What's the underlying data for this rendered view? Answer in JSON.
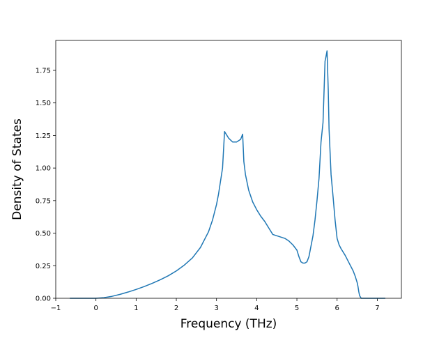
{
  "chart_data": {
    "type": "line",
    "title": "",
    "xlabel": "Frequency (THz)",
    "ylabel": "Density of States",
    "xlim": [
      -1.0,
      7.6
    ],
    "ylim": [
      0.0,
      1.98
    ],
    "x_ticks": [
      -1,
      0,
      1,
      2,
      3,
      4,
      5,
      6,
      7
    ],
    "x_tick_labels": [
      "−1",
      "0",
      "1",
      "2",
      "3",
      "4",
      "5",
      "6",
      "7"
    ],
    "y_ticks": [
      0.0,
      0.25,
      0.5,
      0.75,
      1.0,
      1.25,
      1.5,
      1.75
    ],
    "y_tick_labels": [
      "0.00",
      "0.25",
      "0.50",
      "0.75",
      "1.00",
      "1.25",
      "1.50",
      "1.75"
    ],
    "grid": false,
    "legend": "none",
    "series": [
      {
        "color": "#1f77b4",
        "x": [
          -0.65,
          -0.3,
          0.0,
          0.2,
          0.4,
          0.6,
          0.8,
          1.0,
          1.2,
          1.4,
          1.6,
          1.8,
          2.0,
          2.2,
          2.4,
          2.6,
          2.8,
          2.9,
          3.0,
          3.05,
          3.1,
          3.15,
          3.2,
          3.3,
          3.4,
          3.5,
          3.6,
          3.65,
          3.68,
          3.72,
          3.8,
          3.9,
          4.0,
          4.1,
          4.2,
          4.3,
          4.4,
          4.5,
          4.6,
          4.7,
          4.8,
          4.9,
          5.0,
          5.05,
          5.1,
          5.15,
          5.2,
          5.25,
          5.3,
          5.35,
          5.4,
          5.45,
          5.5,
          5.55,
          5.6,
          5.65,
          5.7,
          5.72,
          5.75,
          5.78,
          5.8,
          5.85,
          5.9,
          5.95,
          6.0,
          6.05,
          6.1,
          6.2,
          6.3,
          6.4,
          6.45,
          6.5,
          6.52,
          6.54,
          6.56,
          6.6,
          7.2
        ],
        "y": [
          0.0,
          0.0,
          0.0,
          0.005,
          0.015,
          0.03,
          0.048,
          0.068,
          0.09,
          0.115,
          0.142,
          0.173,
          0.21,
          0.255,
          0.31,
          0.39,
          0.51,
          0.6,
          0.72,
          0.8,
          0.9,
          1.0,
          1.28,
          1.23,
          1.2,
          1.2,
          1.22,
          1.26,
          1.05,
          0.95,
          0.83,
          0.74,
          0.68,
          0.63,
          0.59,
          0.54,
          0.49,
          0.48,
          0.47,
          0.46,
          0.44,
          0.41,
          0.37,
          0.32,
          0.28,
          0.27,
          0.27,
          0.28,
          0.32,
          0.4,
          0.48,
          0.6,
          0.75,
          0.92,
          1.2,
          1.35,
          1.82,
          1.85,
          1.9,
          1.6,
          1.3,
          0.95,
          0.78,
          0.6,
          0.46,
          0.41,
          0.38,
          0.33,
          0.27,
          0.21,
          0.17,
          0.12,
          0.09,
          0.05,
          0.02,
          0.0,
          0.0
        ]
      }
    ]
  }
}
